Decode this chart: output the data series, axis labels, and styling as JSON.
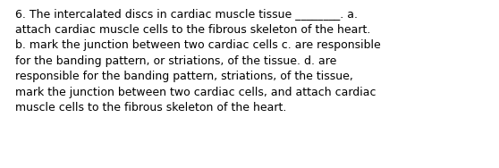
{
  "background_color": "#ffffff",
  "text_color": "#000000",
  "font_size": 9.0,
  "text": "6. The intercalated discs in cardiac muscle tissue ________. a.\nattach cardiac muscle cells to the fibrous skeleton of the heart.\nb. mark the junction between two cardiac cells c. are responsible\nfor the banding pattern, or striations, of the tissue. d. are\nresponsible for the banding pattern, striations, of the tissue,\nmark the junction between two cardiac cells, and attach cardiac\nmuscle cells to the fibrous skeleton of the heart.",
  "figwidth": 5.58,
  "figheight": 1.88,
  "dpi": 100
}
